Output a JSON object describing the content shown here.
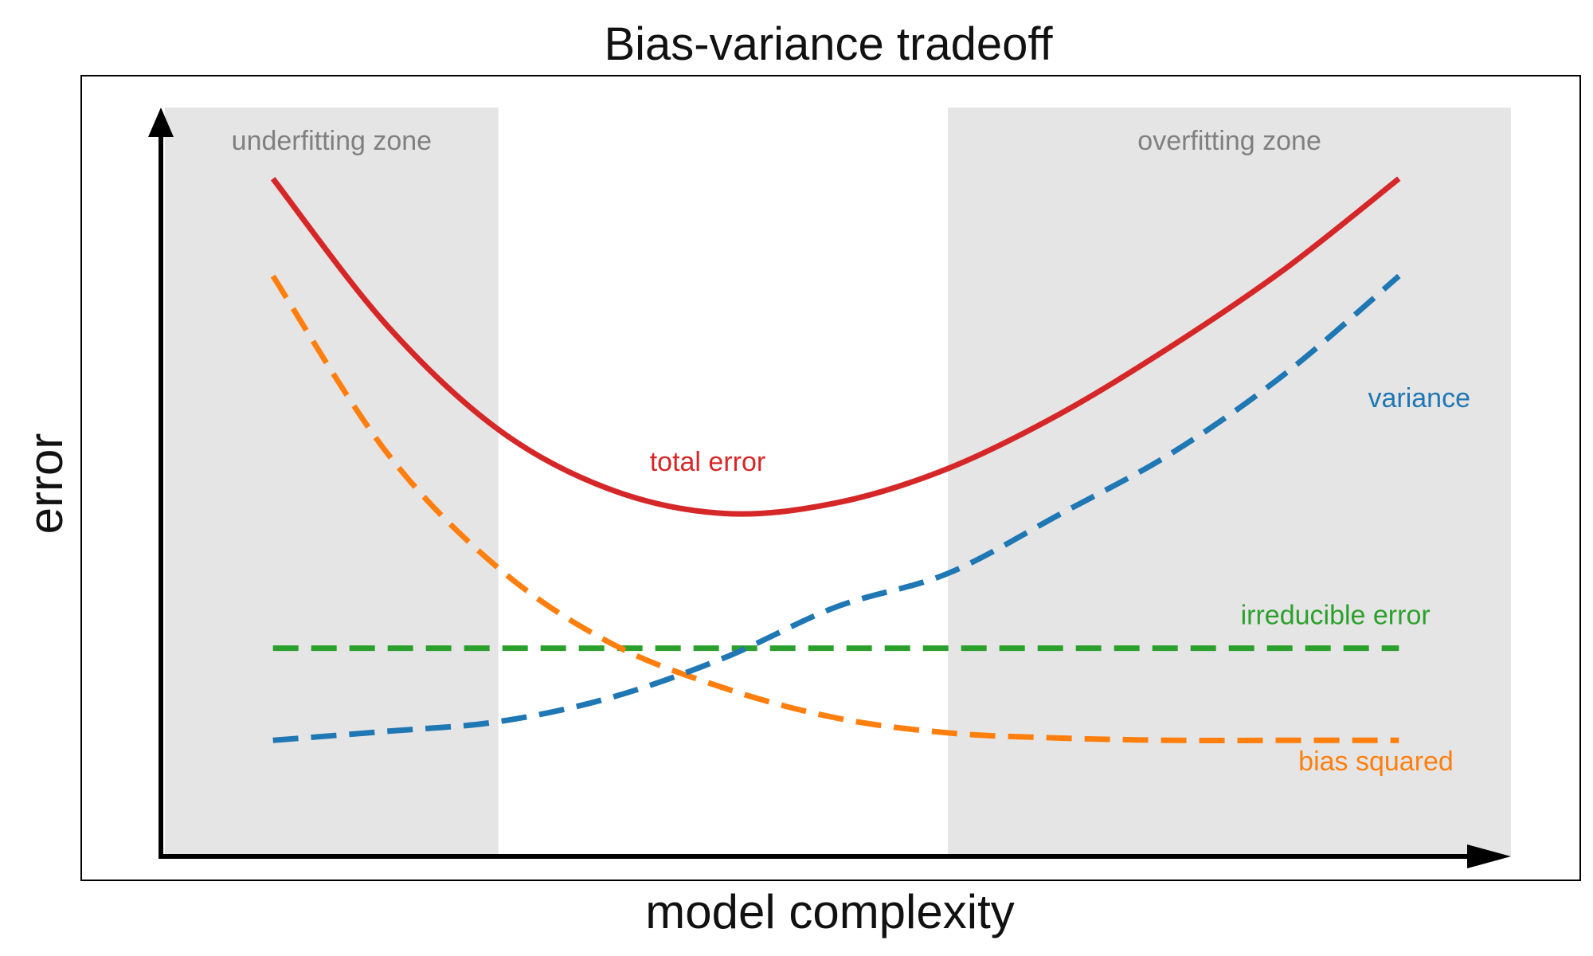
{
  "chart_data": {
    "type": "line",
    "title": "Bias-variance tradeoff",
    "xlabel": "model complexity",
    "ylabel": "error",
    "ticks_shown": false,
    "grid": false,
    "legend": "inline labels (no legend box)",
    "xlim": [
      0,
      1
    ],
    "ylim": [
      0,
      1
    ],
    "zones": [
      {
        "name": "underfitting",
        "label": "underfitting zone",
        "x_range": [
          0,
          0.25
        ],
        "color": "#e5e5e5"
      },
      {
        "name": "overfitting",
        "label": "overfitting zone",
        "x_range": [
          0.583,
          1.0
        ],
        "color": "#e5e5e5"
      }
    ],
    "series": [
      {
        "name": "total error",
        "color": "#d62728",
        "style": "solid",
        "x": [
          0.083,
          0.167,
          0.25,
          0.333,
          0.417,
          0.5,
          0.583,
          0.667,
          0.75,
          0.833,
          0.917
        ],
        "values": [
          0.905,
          0.71,
          0.57,
          0.49,
          0.458,
          0.472,
          0.518,
          0.592,
          0.683,
          0.785,
          0.905
        ]
      },
      {
        "name": "variance",
        "color": "#1f77b4",
        "style": "dashed",
        "x": [
          0.083,
          0.167,
          0.25,
          0.333,
          0.417,
          0.5,
          0.583,
          0.667,
          0.75,
          0.833,
          0.917
        ],
        "values": [
          0.155,
          0.167,
          0.18,
          0.212,
          0.265,
          0.333,
          0.378,
          0.458,
          0.54,
          0.645,
          0.775
        ]
      },
      {
        "name": "bias squared",
        "color": "#ff7f0e",
        "style": "dashed",
        "x": [
          0.083,
          0.167,
          0.25,
          0.333,
          0.417,
          0.5,
          0.583,
          0.667,
          0.75,
          0.833,
          0.917
        ],
        "values": [
          0.775,
          0.54,
          0.385,
          0.285,
          0.225,
          0.185,
          0.165,
          0.158,
          0.155,
          0.155,
          0.155
        ]
      },
      {
        "name": "irreducible error",
        "color": "#2ca02c",
        "style": "dashed",
        "x": [
          0.083,
          0.917
        ],
        "values": [
          0.278,
          0.278
        ]
      }
    ],
    "annotations": [
      {
        "text": "total error",
        "color": "#d62728",
        "x": 0.405,
        "y": 0.515
      },
      {
        "text": "variance",
        "color": "#1f77b4",
        "x": 0.932,
        "y": 0.6
      },
      {
        "text": "irreducible error",
        "color": "#2ca02c",
        "x": 0.87,
        "y": 0.31
      },
      {
        "text": "bias squared",
        "color": "#ff7f0e",
        "x": 0.9,
        "y": 0.115
      }
    ]
  }
}
